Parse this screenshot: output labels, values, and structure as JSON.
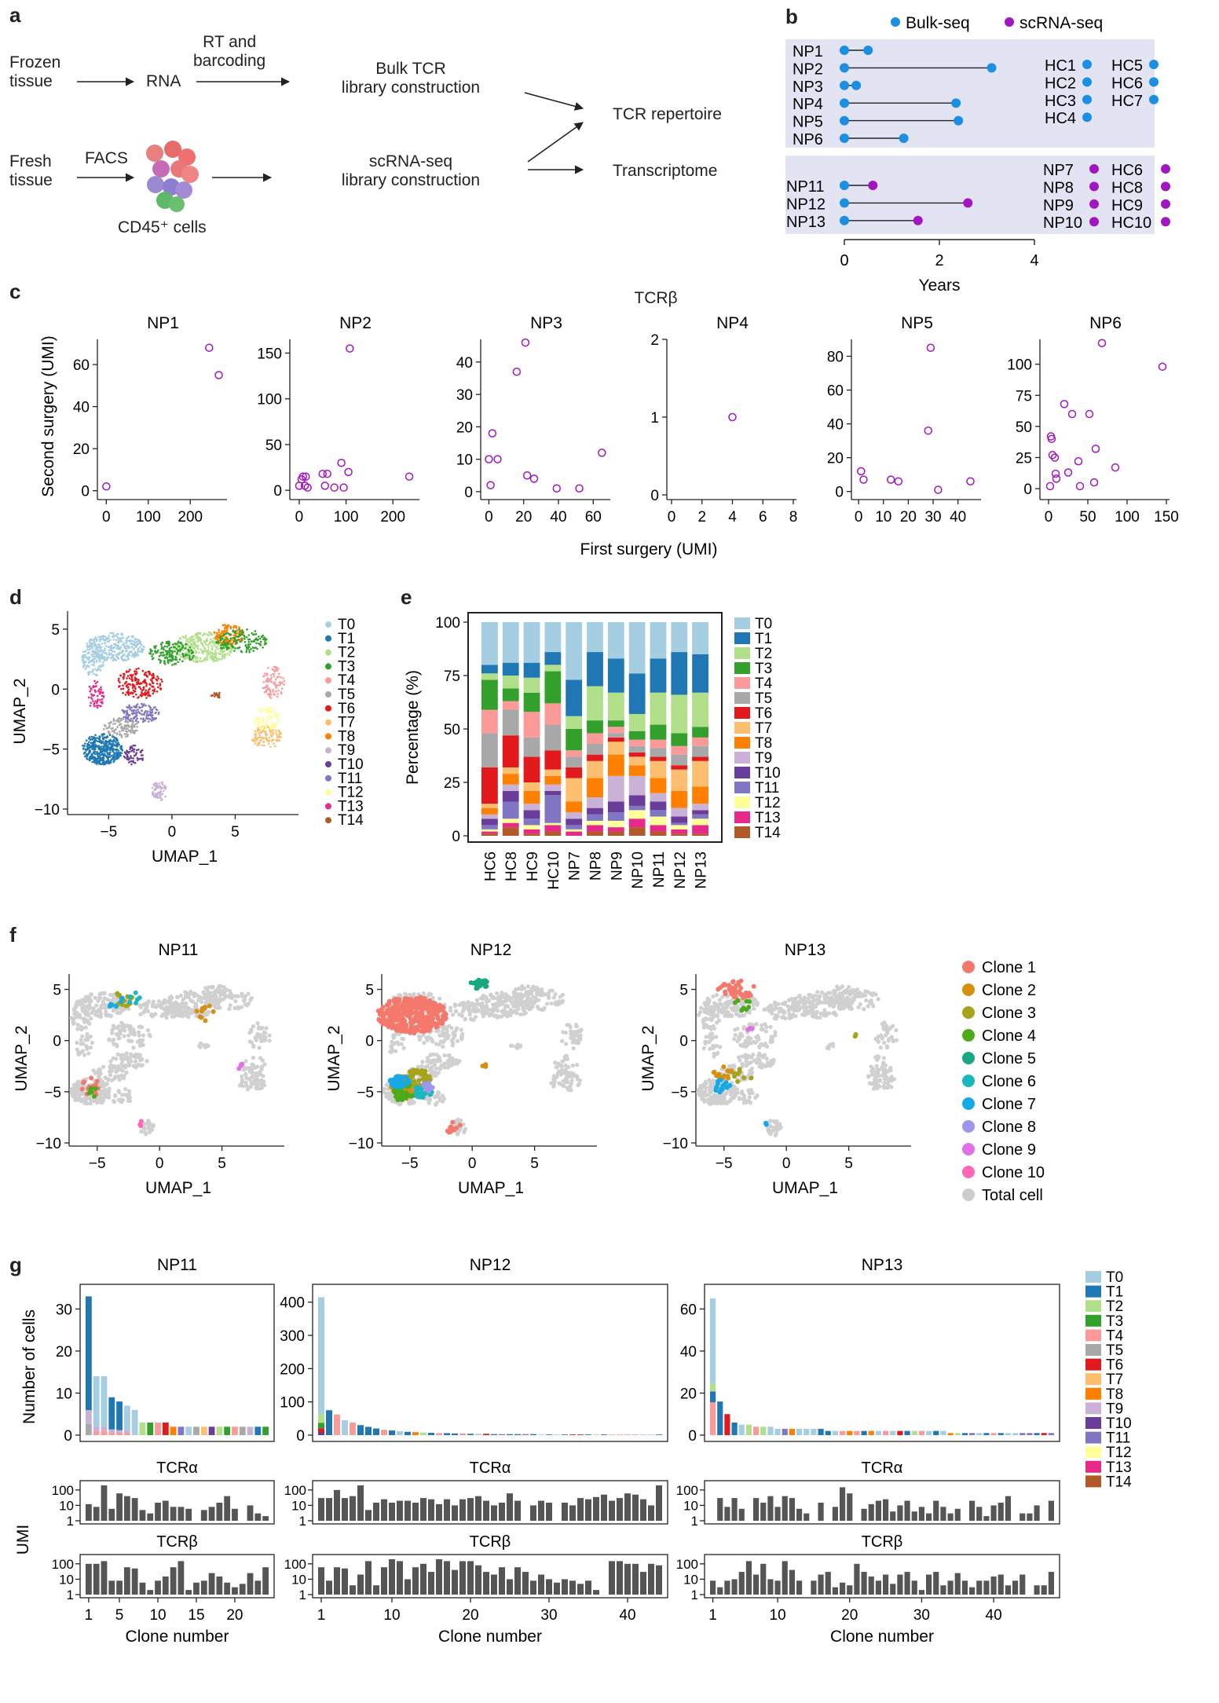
{
  "panel_labels": {
    "a": "a",
    "b": "b",
    "c": "c",
    "d": "d",
    "e": "e",
    "f": "f",
    "g": "g"
  },
  "panel_a": {
    "frozen_tissue": [
      "Frozen",
      "tissue"
    ],
    "rna": "RNA",
    "rt_barcoding": [
      "RT and",
      "barcoding"
    ],
    "bulk_lib": [
      "Bulk TCR",
      "library construction"
    ],
    "fresh_tissue": [
      "Fresh",
      "tissue"
    ],
    "facs": "FACS",
    "cd45": "CD45⁺ cells",
    "sc_lib": [
      "scRNA-seq",
      "library construction"
    ],
    "tcr_repertoire": "TCR repertoire",
    "transcriptome": "Transcriptome"
  },
  "panel_b": {
    "legend": {
      "bulk": "Bulk-seq",
      "sc": "scRNA-seq"
    },
    "colors": {
      "bulk": "#1a8fe3",
      "sc": "#a016c0",
      "box": "#e3e4f3"
    },
    "bulk_np": [
      {
        "name": "NP1",
        "years": 0.5
      },
      {
        "name": "NP2",
        "years": 3.1
      },
      {
        "name": "NP3",
        "years": 0.25
      },
      {
        "name": "NP4",
        "years": 2.35
      },
      {
        "name": "NP5",
        "years": 2.4
      },
      {
        "name": "NP6",
        "years": 1.25
      }
    ],
    "bulk_hc": [
      "HC1",
      "HC2",
      "HC3",
      "HC4",
      "HC5",
      "HC6",
      "HC7"
    ],
    "sc_np": [
      {
        "name": "NP11",
        "years": 0.6
      },
      {
        "name": "NP12",
        "years": 2.6
      },
      {
        "name": "NP13",
        "years": 1.55
      }
    ],
    "sc_np2": [
      "NP7",
      "NP8",
      "NP9",
      "NP10"
    ],
    "sc_hc": [
      "HC6",
      "HC8",
      "HC9",
      "HC10"
    ],
    "x_ticks": [
      "0",
      "2",
      "4"
    ],
    "xlabel": "Years"
  },
  "panel_c": {
    "title": "TCRβ",
    "ylabel": "Second surgery (UMI)",
    "xlabel": "First surgery (UMI)",
    "color": "#a016c0",
    "plots": [
      {
        "name": "NP1",
        "xlim": [
          -10,
          280
        ],
        "ylim": [
          -2,
          72
        ],
        "xticks": [
          0,
          100,
          200
        ],
        "yticks": [
          0,
          20,
          40,
          60
        ],
        "pts": [
          [
            0,
            2
          ],
          [
            245,
            68
          ],
          [
            268,
            55
          ]
        ]
      },
      {
        "name": "NP2",
        "xlim": [
          -10,
          250
        ],
        "ylim": [
          -5,
          165
        ],
        "xticks": [
          0,
          100,
          200
        ],
        "yticks": [
          0,
          50,
          100,
          150
        ],
        "pts": [
          [
            0,
            5
          ],
          [
            5,
            12
          ],
          [
            8,
            15
          ],
          [
            12,
            5
          ],
          [
            14,
            15
          ],
          [
            18,
            3
          ],
          [
            50,
            18
          ],
          [
            55,
            5
          ],
          [
            60,
            18
          ],
          [
            75,
            3
          ],
          [
            90,
            30
          ],
          [
            95,
            3
          ],
          [
            105,
            20
          ],
          [
            108,
            155
          ],
          [
            235,
            15
          ]
        ]
      },
      {
        "name": "NP3",
        "xlim": [
          -2,
          68
        ],
        "ylim": [
          -1,
          47
        ],
        "xticks": [
          0,
          20,
          40,
          60
        ],
        "yticks": [
          0,
          10,
          20,
          30,
          40
        ],
        "pts": [
          [
            0,
            10
          ],
          [
            1,
            2
          ],
          [
            2,
            18
          ],
          [
            5,
            10
          ],
          [
            16,
            37
          ],
          [
            21,
            46
          ],
          [
            22,
            5
          ],
          [
            26,
            4
          ],
          [
            39,
            1
          ],
          [
            52,
            1
          ],
          [
            65,
            12
          ]
        ]
      },
      {
        "name": "NP4",
        "xlim": [
          0,
          8
        ],
        "ylim": [
          0,
          2
        ],
        "xticks": [
          0,
          2,
          4,
          6,
          8
        ],
        "yticks": [
          0,
          1,
          2
        ],
        "pts": [
          [
            4,
            1
          ]
        ]
      },
      {
        "name": "NP5",
        "xlim": [
          -1,
          48
        ],
        "ylim": [
          -2,
          90
        ],
        "xticks": [
          0,
          10,
          20,
          30,
          40
        ],
        "yticks": [
          0,
          20,
          40,
          60,
          80
        ],
        "pts": [
          [
            1,
            12
          ],
          [
            2,
            7
          ],
          [
            13,
            7
          ],
          [
            16,
            6
          ],
          [
            28,
            36
          ],
          [
            29,
            85
          ],
          [
            32,
            1
          ],
          [
            45,
            6
          ]
        ]
      },
      {
        "name": "NP6",
        "xlim": [
          -5,
          150
        ],
        "ylim": [
          -5,
          120
        ],
        "xticks": [
          0,
          50,
          100,
          150
        ],
        "yticks": [
          0,
          25,
          50,
          75,
          100
        ],
        "pts": [
          [
            2,
            2
          ],
          [
            3,
            42
          ],
          [
            4,
            40
          ],
          [
            5,
            27
          ],
          [
            8,
            25
          ],
          [
            9,
            12
          ],
          [
            10,
            8
          ],
          [
            20,
            68
          ],
          [
            25,
            13
          ],
          [
            30,
            60
          ],
          [
            38,
            22
          ],
          [
            40,
            2
          ],
          [
            52,
            60
          ],
          [
            58,
            5
          ],
          [
            60,
            32
          ],
          [
            68,
            117
          ],
          [
            85,
            17
          ],
          [
            145,
            98
          ]
        ]
      }
    ]
  },
  "umap_common": {
    "xlabel": "UMAP_1",
    "ylabel": "UMAP_2",
    "xticks": [
      "−5",
      "0",
      "5"
    ],
    "yticks": [
      "5",
      "0",
      "−5",
      "−10"
    ]
  },
  "cluster_colors": [
    "#a6cee3",
    "#1f78b4",
    "#b2df8a",
    "#33a02c",
    "#fb9a99",
    "#a8a8a8",
    "#e31a1c",
    "#fdbf6f",
    "#ff7f00",
    "#cab2d6",
    "#6a3d9a",
    "#8076c4",
    "#ffff99",
    "#e7298a",
    "#b15928"
  ],
  "clusters": [
    "T0",
    "T1",
    "T2",
    "T3",
    "T4",
    "T5",
    "T6",
    "T7",
    "T8",
    "T9",
    "T10",
    "T11",
    "T12",
    "T13",
    "T14"
  ],
  "panel_e": {
    "ylabel": "Percentage (%)",
    "yticks": [
      "0",
      "25",
      "50",
      "75",
      "100"
    ],
    "chart_data": {
      "type": "bar",
      "categories": [
        "HC6",
        "HC8",
        "HC9",
        "HC10",
        "NP7",
        "NP8",
        "NP9",
        "NP10",
        "NP11",
        "NP12",
        "NP13"
      ],
      "series_order": [
        "T0",
        "T1",
        "T2",
        "T3",
        "T4",
        "T5",
        "T6",
        "T7",
        "T8",
        "T9",
        "T10",
        "T11",
        "T12",
        "T13",
        "T14"
      ],
      "values": [
        [
          20,
          4,
          3,
          14,
          11,
          16,
          17,
          2,
          3,
          2,
          3,
          2,
          1,
          1,
          1
        ],
        [
          19,
          6,
          6,
          6,
          4,
          12,
          15,
          3,
          5,
          3,
          5,
          8,
          2,
          2,
          4
        ],
        [
          19,
          7,
          7,
          9,
          12,
          9,
          12,
          4,
          6,
          3,
          4,
          3,
          2,
          2,
          1
        ],
        [
          14,
          6,
          3,
          15,
          10,
          12,
          9,
          3,
          4,
          3,
          2,
          13,
          1,
          3,
          2
        ],
        [
          27,
          17,
          6,
          10,
          3,
          5,
          5,
          11,
          5,
          3,
          3,
          2,
          1,
          2,
          0
        ],
        [
          14,
          16,
          16,
          6,
          5,
          5,
          3,
          8,
          9,
          5,
          3,
          3,
          2,
          3,
          2
        ],
        [
          17,
          16,
          13,
          3,
          3,
          2,
          2,
          6,
          10,
          12,
          5,
          4,
          3,
          2,
          2
        ],
        [
          24,
          19,
          8,
          4,
          3,
          3,
          2,
          4,
          5,
          9,
          5,
          2,
          4,
          4,
          4
        ],
        [
          17,
          16,
          15,
          7,
          4,
          4,
          2,
          8,
          7,
          4,
          4,
          3,
          4,
          3,
          2
        ],
        [
          14,
          20,
          18,
          6,
          4,
          5,
          2,
          10,
          8,
          4,
          3,
          1,
          2,
          2,
          1
        ],
        [
          15,
          18,
          16,
          5,
          4,
          5,
          2,
          12,
          8,
          3,
          2,
          2,
          3,
          4,
          1
        ]
      ]
    }
  },
  "panel_f": {
    "titles": [
      "NP11",
      "NP12",
      "NP13"
    ],
    "legend": [
      "Clone 1",
      "Clone 2",
      "Clone 3",
      "Clone 4",
      "Clone 5",
      "Clone 6",
      "Clone 7",
      "Clone 8",
      "Clone 9",
      "Clone 10",
      "Total cell"
    ],
    "legend_colors": [
      "#f4786b",
      "#d4900e",
      "#a5a319",
      "#4bab1a",
      "#17a883",
      "#19b7bf",
      "#15a9e6",
      "#9a97ec",
      "#e26fe6",
      "#ff66b5",
      "#cccccc"
    ]
  },
  "panel_g": {
    "ylabel_top": "Number of cells",
    "ylabel_umi": "UMI",
    "xlabel": "Clone number",
    "tcra": "TCRα",
    "tcrb": "TCRβ",
    "plots": [
      {
        "name": "NP11",
        "n": 24,
        "ymax": 34,
        "yticks": [
          0,
          10,
          20,
          30
        ],
        "xticks": [
          1,
          5,
          10,
          15,
          20
        ],
        "counts": [
          33,
          14,
          14,
          9,
          8,
          7,
          6,
          3,
          3,
          3,
          3,
          2,
          2,
          2,
          2,
          2,
          2,
          2,
          2,
          2,
          2,
          2,
          2,
          2
        ],
        "tcra": [
          12,
          8,
          200,
          6,
          60,
          40,
          30,
          5,
          3,
          15,
          20,
          8,
          8,
          6,
          1,
          5,
          8,
          15,
          40,
          6,
          1,
          10,
          3,
          2
        ],
        "tcrb": [
          100,
          100,
          150,
          8,
          8,
          60,
          50,
          6,
          2,
          8,
          15,
          60,
          150,
          2,
          6,
          8,
          25,
          15,
          6,
          3,
          5,
          25,
          8,
          60
        ]
      },
      {
        "name": "NP12",
        "n": 44,
        "ymax": 430,
        "yticks": [
          0,
          100,
          200,
          300,
          400
        ],
        "xticks": [
          1,
          10,
          20,
          30,
          40
        ],
        "counts": [
          415,
          75,
          62,
          45,
          38,
          30,
          25,
          20,
          16,
          14,
          12,
          10,
          9,
          8,
          7,
          6,
          6,
          5,
          5,
          4,
          4,
          4,
          3,
          3,
          3,
          3,
          3,
          3,
          2,
          2,
          2,
          2,
          2,
          2,
          2,
          2,
          2,
          2,
          2,
          2,
          2,
          2,
          2,
          2
        ],
        "tcra": [
          30,
          30,
          100,
          30,
          40,
          200,
          5,
          15,
          25,
          15,
          20,
          20,
          15,
          30,
          25,
          12,
          25,
          10,
          25,
          30,
          40,
          20,
          10,
          15,
          60,
          20,
          1,
          10,
          20,
          15,
          1,
          15,
          10,
          30,
          25,
          35,
          50,
          20,
          30,
          60,
          50,
          25,
          10,
          200
        ],
        "tcrb": [
          60,
          8,
          60,
          50,
          4,
          20,
          150,
          4,
          60,
          200,
          150,
          10,
          60,
          100,
          30,
          200,
          150,
          40,
          150,
          150,
          80,
          30,
          20,
          60,
          10,
          60,
          30,
          8,
          20,
          10,
          6,
          10,
          8,
          5,
          8,
          2,
          1,
          150,
          150,
          100,
          100,
          30,
          100,
          80
        ]
      },
      {
        "name": "NP13",
        "n": 48,
        "ymax": 68,
        "yticks": [
          0,
          20,
          40,
          60
        ],
        "xticks": [
          1,
          10,
          20,
          30,
          40
        ],
        "counts": [
          65,
          16,
          10,
          6,
          5,
          5,
          4,
          4,
          4,
          3,
          3,
          3,
          3,
          3,
          3,
          3,
          2,
          2,
          2,
          2,
          2,
          2,
          2,
          2,
          2,
          2,
          2,
          2,
          2,
          2,
          2,
          2,
          2,
          1,
          1,
          1,
          1,
          1,
          1,
          1,
          1,
          1,
          1,
          1,
          1,
          1,
          1,
          1
        ],
        "tcra": [
          1,
          30,
          8,
          30,
          6,
          1,
          30,
          15,
          40,
          8,
          40,
          30,
          6,
          3,
          1,
          15,
          1,
          8,
          150,
          60,
          1,
          6,
          12,
          20,
          25,
          4,
          10,
          20,
          4,
          8,
          3,
          20,
          8,
          3,
          6,
          1,
          20,
          8,
          2,
          10,
          15,
          40,
          1,
          3,
          3,
          10,
          1,
          20
        ],
        "tcrb": [
          8,
          3,
          8,
          10,
          30,
          150,
          20,
          100,
          10,
          8,
          150,
          40,
          8,
          1,
          8,
          20,
          30,
          3,
          6,
          4,
          100,
          30,
          15,
          8,
          20,
          5,
          20,
          30,
          8,
          2,
          20,
          30,
          4,
          8,
          25,
          8,
          3,
          8,
          8,
          15,
          20,
          4,
          8,
          20,
          1,
          4,
          4,
          30
        ]
      }
    ],
    "bar_colors_top": {
      "NP11": [
        [
          1,
          2,
          3,
          4,
          5,
          9,
          10,
          11,
          12
        ],
        [
          1,
          0,
          0,
          1,
          1,
          0,
          0,
          2,
          3,
          4,
          6,
          8,
          11,
          0,
          5,
          7,
          10,
          2,
          3,
          4,
          5,
          9,
          1,
          3
        ]
      ],
      "NP12": "mixed",
      "NP13": "mixed"
    }
  }
}
